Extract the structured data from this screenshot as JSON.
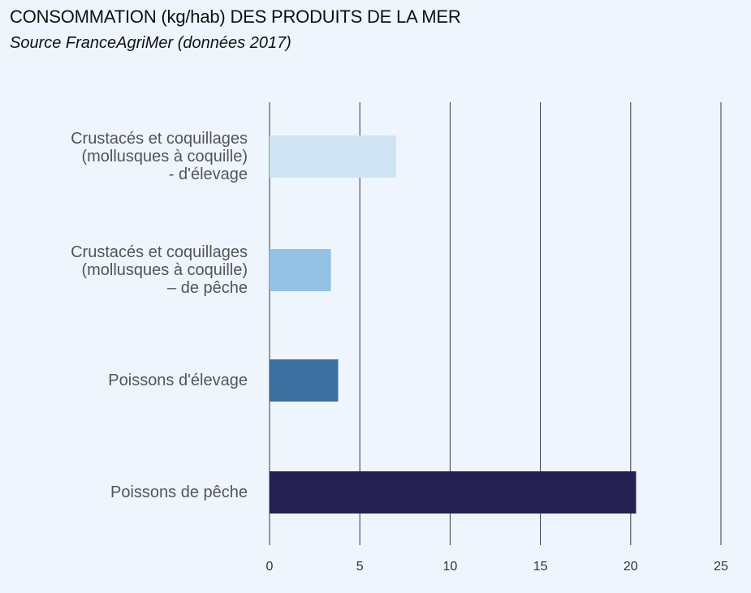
{
  "title": "CONSOMMATION (kg/hab) DES PRODUITS DE LA MER",
  "subtitle": "Source FranceAgriMer (données 2017)",
  "chart_data": {
    "type": "bar",
    "orientation": "horizontal",
    "title": "CONSOMMATION (kg/hab) DES PRODUITS DE LA MER",
    "subtitle": "Source FranceAgriMer (données 2017)",
    "categories": [
      "Crustacés et coquillages\n(mollusques à coquille)\n- d'élevage",
      "Crustacés et coquillages\n(mollusques à coquille)\n– de pêche",
      "Poissons d'élevage",
      "Poissons de pêche"
    ],
    "values": [
      7.0,
      3.4,
      3.8,
      20.3
    ],
    "colors": [
      "#d0e3f3",
      "#93c2e4",
      "#3a6f9f",
      "#252052"
    ],
    "xlim": [
      0,
      25
    ],
    "xticks": [
      "0",
      "5",
      "10",
      "15",
      "20",
      "25"
    ],
    "grid": true,
    "legend": "none"
  }
}
